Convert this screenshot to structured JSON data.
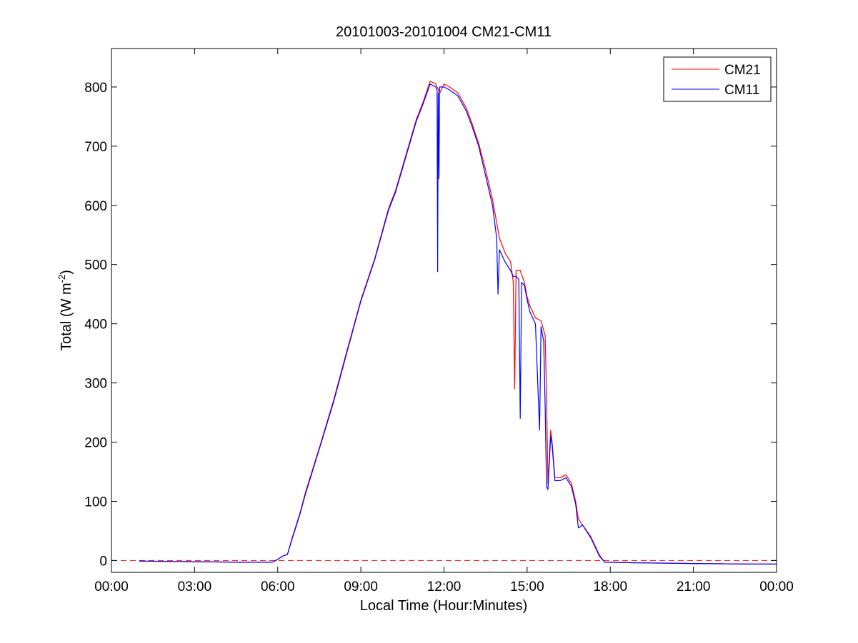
{
  "chart_data": {
    "type": "line",
    "title": "20101003-20101004 CM21-CM11",
    "xlabel": "Local Time (Hour:Minutes)",
    "ylabel_main": "Total (W m",
    "ylabel_sup": "-2",
    "ylabel_end": ")",
    "xlim": [
      0,
      24
    ],
    "ylim": [
      -20,
      865
    ],
    "x_ticks": [
      0,
      3,
      6,
      9,
      12,
      15,
      18,
      21,
      24
    ],
    "x_tick_labels": [
      "00:00",
      "03:00",
      "06:00",
      "09:00",
      "12:00",
      "15:00",
      "18:00",
      "21:00",
      "00:00"
    ],
    "y_ticks": [
      0,
      100,
      200,
      300,
      400,
      500,
      600,
      700,
      800
    ],
    "y_tick_labels": [
      "0",
      "100",
      "200",
      "300",
      "400",
      "500",
      "600",
      "700",
      "800"
    ],
    "legend_position": "top-right",
    "zero_line": {
      "y": 0,
      "color": "#ff0000",
      "style": "dashed"
    },
    "series": [
      {
        "name": "CM21",
        "color": "#ff0000",
        "points": [
          [
            1.0,
            -1
          ],
          [
            2.0,
            -1.5
          ],
          [
            3.0,
            -2
          ],
          [
            4.0,
            -2.5
          ],
          [
            5.0,
            -3
          ],
          [
            5.8,
            -3
          ],
          [
            6.0,
            2
          ],
          [
            6.2,
            8
          ],
          [
            6.35,
            10
          ],
          [
            6.5,
            35
          ],
          [
            6.8,
            80
          ],
          [
            7.0,
            115
          ],
          [
            7.5,
            190
          ],
          [
            8.0,
            268
          ],
          [
            8.5,
            355
          ],
          [
            9.0,
            440
          ],
          [
            9.5,
            510
          ],
          [
            10.0,
            595
          ],
          [
            10.25,
            625
          ],
          [
            10.5,
            665
          ],
          [
            10.75,
            705
          ],
          [
            11.0,
            745
          ],
          [
            11.25,
            775
          ],
          [
            11.5,
            810
          ],
          [
            11.7,
            805
          ],
          [
            11.85,
            790
          ],
          [
            12.0,
            805
          ],
          [
            12.2,
            800
          ],
          [
            12.5,
            790
          ],
          [
            12.8,
            765
          ],
          [
            13.0,
            740
          ],
          [
            13.25,
            705
          ],
          [
            13.5,
            660
          ],
          [
            13.75,
            610
          ],
          [
            14.0,
            545
          ],
          [
            14.2,
            520
          ],
          [
            14.4,
            505
          ],
          [
            14.5,
            470
          ],
          [
            14.55,
            290
          ],
          [
            14.6,
            490
          ],
          [
            14.75,
            490
          ],
          [
            14.9,
            470
          ],
          [
            15.0,
            445
          ],
          [
            15.1,
            430
          ],
          [
            15.3,
            410
          ],
          [
            15.5,
            405
          ],
          [
            15.65,
            380
          ],
          [
            15.7,
            280
          ],
          [
            15.75,
            130
          ],
          [
            15.85,
            220
          ],
          [
            15.9,
            200
          ],
          [
            16.0,
            140
          ],
          [
            16.2,
            140
          ],
          [
            16.4,
            145
          ],
          [
            16.6,
            130
          ],
          [
            16.75,
            100
          ],
          [
            16.85,
            70
          ],
          [
            17.0,
            60
          ],
          [
            17.3,
            40
          ],
          [
            17.6,
            10
          ],
          [
            17.8,
            -3
          ],
          [
            18.0,
            -3
          ],
          [
            19.0,
            -4
          ],
          [
            20.0,
            -4.5
          ],
          [
            21.0,
            -5
          ],
          [
            22.0,
            -5.5
          ],
          [
            23.0,
            -6
          ],
          [
            24.0,
            -6
          ]
        ]
      },
      {
        "name": "CM11",
        "color": "#0000ff",
        "points": [
          [
            1.0,
            -1
          ],
          [
            2.0,
            -1.5
          ],
          [
            3.0,
            -2
          ],
          [
            4.0,
            -2.5
          ],
          [
            5.0,
            -3
          ],
          [
            5.8,
            -3
          ],
          [
            6.0,
            2
          ],
          [
            6.2,
            8
          ],
          [
            6.35,
            10
          ],
          [
            6.5,
            33
          ],
          [
            6.8,
            78
          ],
          [
            7.0,
            112
          ],
          [
            7.5,
            188
          ],
          [
            8.0,
            265
          ],
          [
            8.5,
            352
          ],
          [
            9.0,
            438
          ],
          [
            9.5,
            508
          ],
          [
            10.0,
            592
          ],
          [
            10.25,
            622
          ],
          [
            10.5,
            662
          ],
          [
            10.75,
            702
          ],
          [
            11.0,
            742
          ],
          [
            11.25,
            772
          ],
          [
            11.5,
            805
          ],
          [
            11.7,
            800
          ],
          [
            11.75,
            795
          ],
          [
            11.77,
            488
          ],
          [
            11.79,
            790
          ],
          [
            11.82,
            645
          ],
          [
            11.84,
            800
          ],
          [
            12.0,
            800
          ],
          [
            12.2,
            795
          ],
          [
            12.5,
            785
          ],
          [
            12.8,
            760
          ],
          [
            13.0,
            735
          ],
          [
            13.25,
            700
          ],
          [
            13.5,
            650
          ],
          [
            13.75,
            600
          ],
          [
            13.9,
            545
          ],
          [
            13.95,
            450
          ],
          [
            14.0,
            525
          ],
          [
            14.2,
            505
          ],
          [
            14.4,
            490
          ],
          [
            14.5,
            480
          ],
          [
            14.6,
            480
          ],
          [
            14.7,
            475
          ],
          [
            14.75,
            240
          ],
          [
            14.8,
            470
          ],
          [
            14.9,
            465
          ],
          [
            15.0,
            440
          ],
          [
            15.1,
            420
          ],
          [
            15.3,
            400
          ],
          [
            15.45,
            220
          ],
          [
            15.5,
            395
          ],
          [
            15.6,
            370
          ],
          [
            15.65,
            260
          ],
          [
            15.7,
            125
          ],
          [
            15.75,
            120
          ],
          [
            15.85,
            210
          ],
          [
            15.9,
            195
          ],
          [
            16.0,
            135
          ],
          [
            16.2,
            135
          ],
          [
            16.4,
            140
          ],
          [
            16.6,
            125
          ],
          [
            16.75,
            95
          ],
          [
            16.85,
            55
          ],
          [
            17.0,
            60
          ],
          [
            17.3,
            38
          ],
          [
            17.6,
            8
          ],
          [
            17.8,
            -3
          ],
          [
            18.0,
            -3
          ],
          [
            19.0,
            -4
          ],
          [
            20.0,
            -4.5
          ],
          [
            21.0,
            -5
          ],
          [
            22.0,
            -5.5
          ],
          [
            23.0,
            -6
          ],
          [
            24.0,
            -6
          ]
        ]
      }
    ]
  }
}
